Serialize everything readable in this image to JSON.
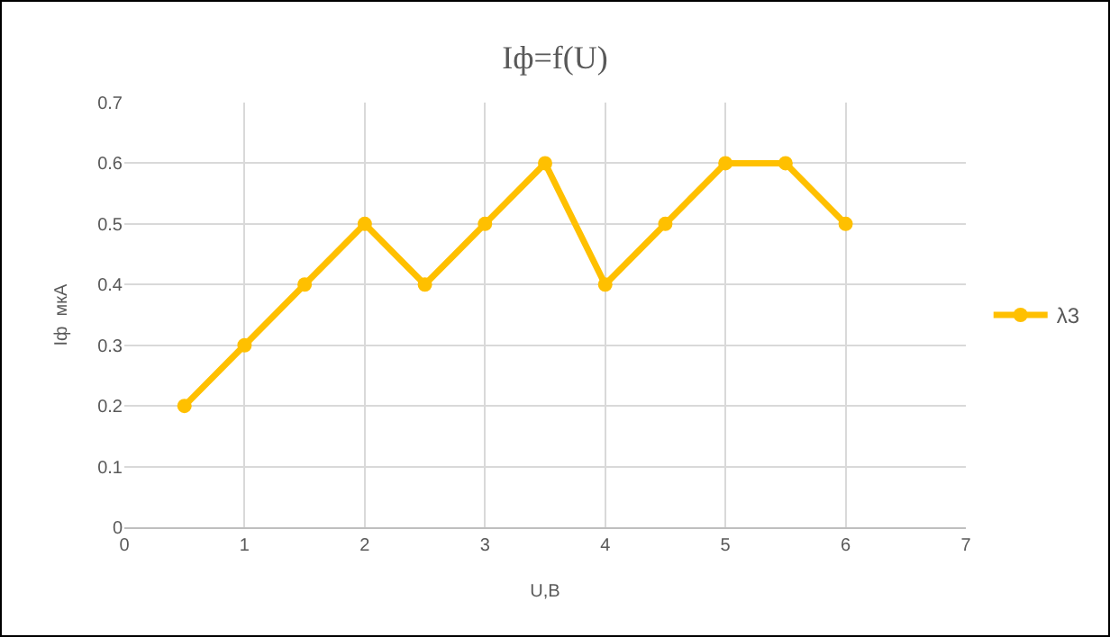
{
  "chart_data": {
    "type": "line",
    "title": "Iф=f(U)",
    "xlabel": "U,B",
    "ylabel": "Iф  мкА",
    "x": [
      0.5,
      1,
      1.5,
      2,
      2.5,
      3,
      3.5,
      4,
      4.5,
      5,
      5.5,
      6
    ],
    "series": [
      {
        "name": "λ3",
        "color": "#ffc000",
        "values": [
          0.2,
          0.3,
          0.4,
          0.5,
          0.4,
          0.5,
          0.6,
          0.4,
          0.5,
          0.6,
          0.6,
          0.5
        ]
      }
    ],
    "xlim": [
      0,
      7
    ],
    "xticks": [
      0,
      1,
      2,
      3,
      4,
      5,
      6,
      7
    ],
    "ylim": [
      0,
      0.7
    ],
    "yticks": [
      0,
      0.1,
      0.2,
      0.3,
      0.4,
      0.5,
      0.6,
      0.7
    ],
    "grid": true,
    "legend": "right",
    "marker": "circle",
    "line_style": "solid"
  }
}
